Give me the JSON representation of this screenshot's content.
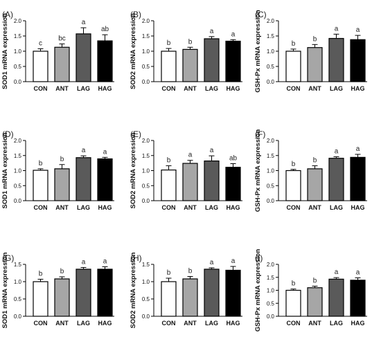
{
  "figure": {
    "groups": [
      "CON",
      "ANT",
      "LAG",
      "HAG"
    ],
    "bar_colors": [
      "#ffffff",
      "#a6a6a6",
      "#5a5a5a",
      "#000000"
    ]
  },
  "chart_data": [
    {
      "panel": "(A)",
      "type": "bar",
      "ylabel": "SOD1 mRNA expression",
      "ylim": [
        0,
        2.0
      ],
      "yticks": [
        "0.0",
        "0.5",
        "1.0",
        "1.5",
        "2.0"
      ],
      "categories": [
        "CON",
        "ANT",
        "LAG",
        "HAG"
      ],
      "values": [
        1.0,
        1.13,
        1.57,
        1.34
      ],
      "errors": [
        0.08,
        0.11,
        0.2,
        0.2
      ],
      "labels": [
        "c",
        "bc",
        "a",
        "ab"
      ]
    },
    {
      "panel": "(B)",
      "type": "bar",
      "ylabel": "SOD2 mRNA expression",
      "ylim": [
        0,
        2.0
      ],
      "yticks": [
        "0.0",
        "0.5",
        "1.0",
        "1.5",
        "2.0"
      ],
      "categories": [
        "CON",
        "ANT",
        "LAG",
        "HAG"
      ],
      "values": [
        1.0,
        1.06,
        1.41,
        1.33
      ],
      "errors": [
        0.09,
        0.07,
        0.07,
        0.05
      ],
      "labels": [
        "b",
        "b",
        "a",
        "a"
      ]
    },
    {
      "panel": "(C)",
      "type": "bar",
      "ylabel": "GSH-Px mRNA expression",
      "ylim": [
        0,
        2.0
      ],
      "yticks": [
        "0.0",
        "0.5",
        "1.0",
        "1.5",
        "2.0"
      ],
      "categories": [
        "CON",
        "ANT",
        "LAG",
        "HAG"
      ],
      "values": [
        1.0,
        1.12,
        1.42,
        1.38
      ],
      "errors": [
        0.07,
        0.1,
        0.14,
        0.14
      ],
      "labels": [
        "b",
        "b",
        "a",
        "a"
      ]
    },
    {
      "panel": "(D)",
      "type": "bar",
      "ylabel": "SOD1 mRNA expression",
      "ylim": [
        0,
        2.0
      ],
      "yticks": [
        "0.0",
        "0.5",
        "1.0",
        "1.5",
        "2.0"
      ],
      "categories": [
        "CON",
        "ANT",
        "LAG",
        "HAG"
      ],
      "values": [
        1.01,
        1.06,
        1.43,
        1.39
      ],
      "errors": [
        0.05,
        0.14,
        0.06,
        0.05
      ],
      "labels": [
        "b",
        "b",
        "a",
        "a"
      ]
    },
    {
      "panel": "(E)",
      "type": "bar",
      "ylabel": "SOD2 mRNA expression",
      "ylim": [
        0,
        2.0
      ],
      "yticks": [
        "0.0",
        "0.5",
        "1.0",
        "1.5",
        "2.0"
      ],
      "categories": [
        "CON",
        "ANT",
        "LAG",
        "HAG"
      ],
      "values": [
        1.02,
        1.24,
        1.32,
        1.11
      ],
      "errors": [
        0.14,
        0.1,
        0.17,
        0.12
      ],
      "labels": [
        "b",
        "a",
        "a",
        "ab"
      ]
    },
    {
      "panel": "(F)",
      "type": "bar",
      "ylabel": "GSH-Px mRNA expression",
      "ylim": [
        0,
        2.0
      ],
      "yticks": [
        "0.0",
        "0.5",
        "1.0",
        "1.5",
        "2.0"
      ],
      "categories": [
        "CON",
        "ANT",
        "LAG",
        "HAG"
      ],
      "values": [
        1.0,
        1.06,
        1.41,
        1.44
      ],
      "errors": [
        0.04,
        0.1,
        0.05,
        0.1
      ],
      "labels": [
        "b",
        "b",
        "a",
        "a"
      ]
    },
    {
      "panel": "(G)",
      "type": "bar",
      "ylabel": "SOD1 mRNA expression",
      "ylim": [
        0,
        1.5
      ],
      "yticks": [
        "0.0",
        "0.5",
        "1.0",
        "1.5"
      ],
      "categories": [
        "CON",
        "ANT",
        "LAG",
        "HAG"
      ],
      "values": [
        1.0,
        1.08,
        1.36,
        1.36
      ],
      "errors": [
        0.07,
        0.06,
        0.05,
        0.07
      ],
      "labels": [
        "b",
        "b",
        "a",
        "a"
      ]
    },
    {
      "panel": "(H)",
      "type": "bar",
      "ylabel": "SOD2 mRNA expression",
      "ylim": [
        0,
        1.5
      ],
      "yticks": [
        "0.0",
        "0.5",
        "1.0",
        "1.5"
      ],
      "categories": [
        "CON",
        "ANT",
        "LAG",
        "HAG"
      ],
      "values": [
        1.0,
        1.08,
        1.36,
        1.33
      ],
      "errors": [
        0.1,
        0.07,
        0.04,
        0.11
      ],
      "labels": [
        "b",
        "b",
        "a",
        "a"
      ]
    },
    {
      "panel": "(I)",
      "type": "bar",
      "ylabel": "GSH-Px mRNA expression",
      "ylim": [
        0,
        2.0
      ],
      "yticks": [
        "0.0",
        "0.5",
        "1.0",
        "1.5",
        "2.0"
      ],
      "categories": [
        "CON",
        "ANT",
        "LAG",
        "HAG"
      ],
      "values": [
        1.0,
        1.1,
        1.43,
        1.39
      ],
      "errors": [
        0.05,
        0.06,
        0.06,
        0.09
      ],
      "labels": [
        "b",
        "b",
        "a",
        "a"
      ]
    }
  ]
}
